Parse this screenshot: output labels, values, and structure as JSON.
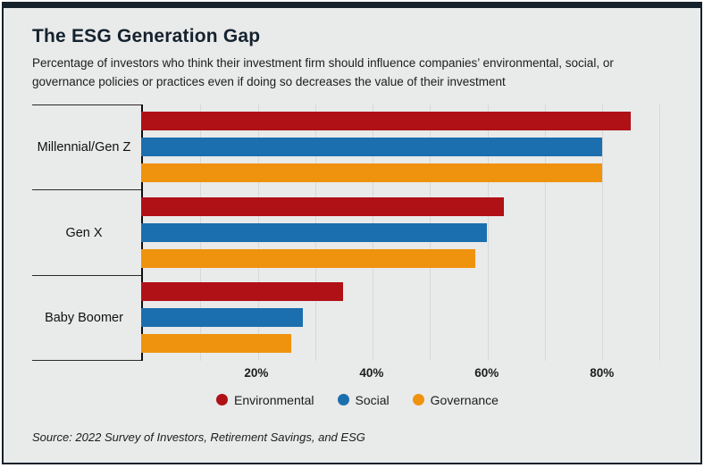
{
  "header": {
    "title": "The ESG Generation Gap",
    "subtitle": "Percentage of investors who think their investment firm should influence companies’ environmental, social, or governance policies or practices even if doing so decreases the value of their investment"
  },
  "source": "Source: 2022 Survey of Investors, Retirement Savings, and ESG",
  "colors": {
    "background": "#e9eaea",
    "frame": "#15212b",
    "axis": "#101010",
    "gridline": "#d7d8d8",
    "environmental": "#b01116",
    "social": "#1c6fae",
    "governance": "#ef930e"
  },
  "chart_data": {
    "type": "bar",
    "orientation": "horizontal",
    "title": "The ESG Generation Gap",
    "categories": [
      "Millennial/Gen Z",
      "Gen X",
      "Baby Boomer"
    ],
    "series": [
      {
        "name": "Environmental",
        "color": "#b01116",
        "values": [
          85,
          63,
          35
        ]
      },
      {
        "name": "Social",
        "color": "#1c6fae",
        "values": [
          80,
          60,
          28
        ]
      },
      {
        "name": "Governance",
        "color": "#ef930e",
        "values": [
          80,
          58,
          26
        ]
      }
    ],
    "xlim": [
      0,
      94
    ],
    "gridline_step": 10,
    "ticks": [
      20,
      40,
      60,
      80
    ],
    "tick_labels": [
      "20%",
      "40%",
      "60%",
      "80%"
    ],
    "grid": true,
    "legend_position": "bottom"
  }
}
